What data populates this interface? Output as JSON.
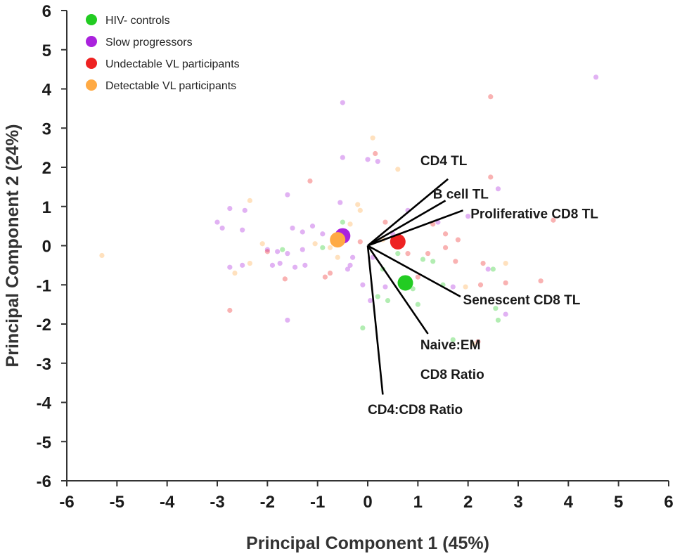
{
  "chart_data": {
    "type": "scatter",
    "title": "",
    "xlabel": "Principal Component 1 (45%)",
    "ylabel": "Principal Component 2 (24%)",
    "xlim": [
      -6,
      6
    ],
    "ylim": [
      -6,
      6
    ],
    "xticks": [
      -6,
      -5,
      -4,
      -3,
      -2,
      -1,
      0,
      1,
      2,
      3,
      4,
      5,
      6
    ],
    "yticks": [
      -6,
      -5,
      -4,
      -3,
      -2,
      -1,
      0,
      1,
      2,
      3,
      4,
      5,
      6
    ],
    "grid": false,
    "legend_position": "top-left",
    "series": [
      {
        "name": "HIV- controls",
        "color": "#22cc22",
        "centroid": [
          0.75,
          -0.95
        ],
        "points": [
          [
            -1.7,
            -0.1
          ],
          [
            -0.9,
            -0.05
          ],
          [
            -0.1,
            -2.1
          ],
          [
            0.2,
            -1.3
          ],
          [
            0.4,
            -1.4
          ],
          [
            0.9,
            -1.1
          ],
          [
            1.1,
            -0.35
          ],
          [
            1.3,
            -0.4
          ],
          [
            1.5,
            -1.0
          ],
          [
            1.7,
            -2.4
          ],
          [
            2.5,
            -0.6
          ],
          [
            2.6,
            -1.9
          ],
          [
            2.55,
            -1.6
          ],
          [
            0.6,
            -0.2
          ],
          [
            -0.5,
            0.6
          ],
          [
            0.3,
            -0.6
          ],
          [
            1.0,
            -1.5
          ]
        ]
      },
      {
        "name": "Slow progressors",
        "color": "#aa22dd",
        "centroid": [
          -0.5,
          0.25
        ],
        "points": [
          [
            4.55,
            4.3
          ],
          [
            -0.5,
            3.65
          ],
          [
            -0.5,
            2.25
          ],
          [
            0.0,
            2.2
          ],
          [
            0.2,
            2.15
          ],
          [
            -1.6,
            1.3
          ],
          [
            -0.55,
            1.1
          ],
          [
            -2.75,
            0.95
          ],
          [
            -2.45,
            0.9
          ],
          [
            -3.0,
            0.6
          ],
          [
            -2.9,
            0.45
          ],
          [
            -2.5,
            0.4
          ],
          [
            -1.5,
            0.45
          ],
          [
            -1.1,
            0.5
          ],
          [
            -1.3,
            0.35
          ],
          [
            -0.9,
            0.3
          ],
          [
            -2.0,
            -0.1
          ],
          [
            -1.8,
            -0.15
          ],
          [
            -1.6,
            -0.2
          ],
          [
            -1.3,
            -0.1
          ],
          [
            -0.3,
            -0.3
          ],
          [
            -2.75,
            -0.55
          ],
          [
            -2.5,
            -0.5
          ],
          [
            -1.9,
            -0.5
          ],
          [
            -1.75,
            -0.45
          ],
          [
            -1.45,
            -0.55
          ],
          [
            -1.25,
            -0.5
          ],
          [
            -0.35,
            -0.5
          ],
          [
            -0.4,
            -0.6
          ],
          [
            0.1,
            -0.3
          ],
          [
            -0.1,
            -1.0
          ],
          [
            0.35,
            -1.05
          ],
          [
            0.05,
            -1.4
          ],
          [
            -1.6,
            -1.9
          ],
          [
            2.0,
            0.75
          ],
          [
            1.4,
            0.6
          ],
          [
            2.6,
            1.45
          ],
          [
            0.5,
            0.3
          ],
          [
            2.4,
            -0.6
          ],
          [
            1.7,
            -1.05
          ],
          [
            2.75,
            -1.75
          ],
          [
            0.8,
            0.9
          ]
        ]
      },
      {
        "name": "Undectable VL participants",
        "color": "#ee2222",
        "centroid": [
          0.6,
          0.1
        ],
        "points": [
          [
            2.45,
            3.8
          ],
          [
            0.15,
            2.35
          ],
          [
            -1.15,
            1.65
          ],
          [
            2.45,
            1.75
          ],
          [
            1.3,
            0.55
          ],
          [
            1.55,
            0.3
          ],
          [
            1.8,
            0.15
          ],
          [
            1.55,
            -0.05
          ],
          [
            1.75,
            -0.4
          ],
          [
            2.3,
            -0.45
          ],
          [
            1.2,
            -0.2
          ],
          [
            0.8,
            -0.2
          ],
          [
            0.35,
            0.6
          ],
          [
            0.65,
            0.05
          ],
          [
            -0.75,
            -0.7
          ],
          [
            -0.85,
            -0.8
          ],
          [
            -1.65,
            -0.85
          ],
          [
            -2.75,
            -1.65
          ],
          [
            -2.0,
            -0.15
          ],
          [
            2.25,
            -1.0
          ],
          [
            2.75,
            -0.95
          ],
          [
            3.45,
            -0.9
          ],
          [
            2.2,
            -2.45
          ],
          [
            3.7,
            0.65
          ],
          [
            -0.15,
            0.1
          ],
          [
            1.0,
            -0.8
          ]
        ]
      },
      {
        "name": "Detectable VL participants",
        "color": "#ffaa44",
        "centroid": [
          -0.6,
          0.15
        ],
        "points": [
          [
            0.1,
            2.75
          ],
          [
            0.6,
            1.95
          ],
          [
            -0.2,
            1.05
          ],
          [
            -0.15,
            0.9
          ],
          [
            -2.35,
            1.15
          ],
          [
            -2.1,
            0.05
          ],
          [
            -1.05,
            0.05
          ],
          [
            -0.75,
            -0.05
          ],
          [
            -0.6,
            -0.3
          ],
          [
            -2.35,
            -0.45
          ],
          [
            -2.65,
            -0.7
          ],
          [
            -5.3,
            -0.25
          ],
          [
            2.75,
            -0.45
          ],
          [
            1.95,
            -1.05
          ],
          [
            2.1,
            -2.5
          ],
          [
            0.3,
            0.15
          ],
          [
            -0.35,
            0.55
          ]
        ]
      }
    ],
    "loadings": [
      {
        "label": "CD4 TL",
        "end": [
          1.6,
          1.7
        ],
        "label_at": [
          1.05,
          2.05
        ]
      },
      {
        "label": "B cell TL",
        "end": [
          1.55,
          1.15
        ],
        "label_at": [
          1.3,
          1.2
        ]
      },
      {
        "label": "Proliferative CD8 TL",
        "end": [
          1.9,
          0.9
        ],
        "label_at": [
          2.05,
          0.7
        ]
      },
      {
        "label": "Senescent CD8 TL",
        "end": [
          1.85,
          -1.3
        ],
        "label_at": [
          1.9,
          -1.5
        ]
      },
      {
        "label": "Naive:EM",
        "end": [
          1.2,
          -2.25
        ],
        "label_at": [
          1.05,
          -2.65
        ]
      },
      {
        "label": "CD8 Ratio",
        "end": [
          1.2,
          -2.25
        ],
        "label_at": [
          1.05,
          -3.4
        ]
      },
      {
        "label": "CD4:CD8 Ratio",
        "end": [
          0.3,
          -3.8
        ],
        "label_at": [
          0.0,
          -4.3
        ]
      }
    ]
  }
}
